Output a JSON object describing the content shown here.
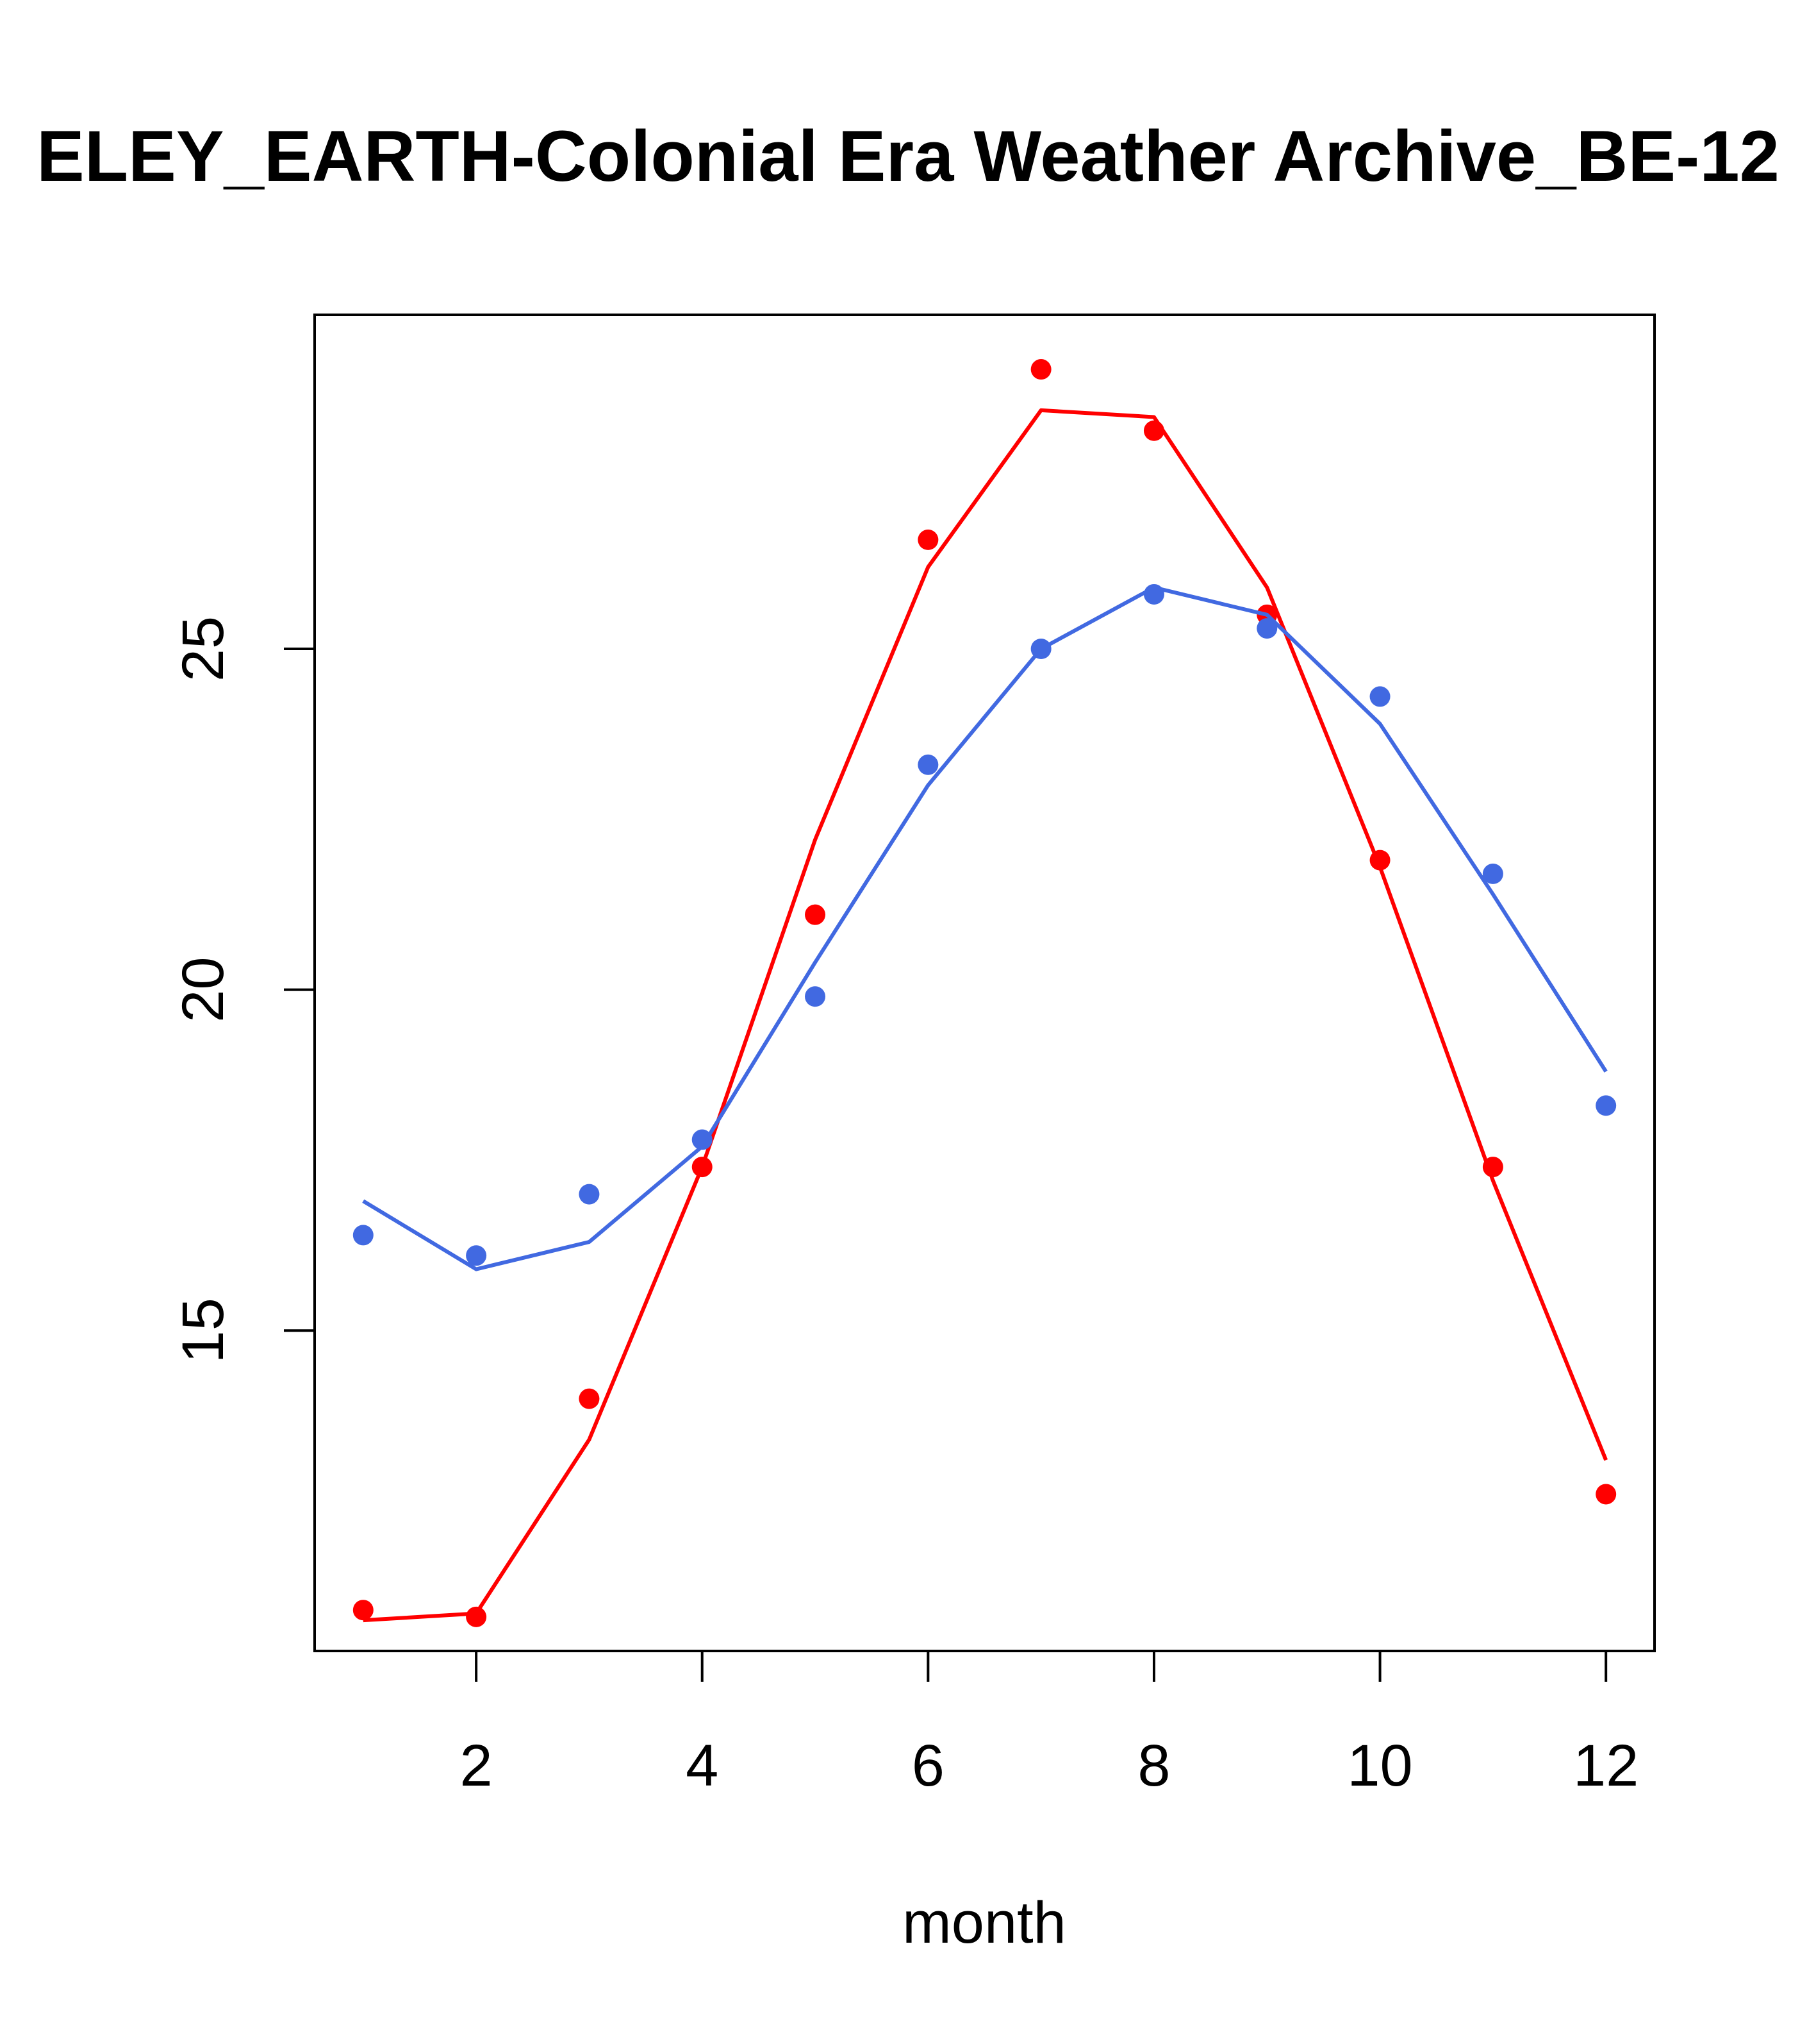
{
  "chart_data": {
    "type": "line",
    "title": "ELEY_EARTH-Colonial Era Weather Archive_BE-12",
    "xlabel": "month",
    "ylabel": "",
    "xlim": [
      0.57,
      12.43
    ],
    "ylim": [
      10.3,
      29.9
    ],
    "x_ticks": [
      2,
      4,
      6,
      8,
      10,
      12
    ],
    "y_ticks": [
      15,
      20,
      25
    ],
    "grid": false,
    "x": [
      1,
      2,
      3,
      4,
      5,
      6,
      7,
      8,
      9,
      10,
      11,
      12
    ],
    "series": [
      {
        "color": "#FF0000",
        "points": [
          10.9,
          10.8,
          14.0,
          17.4,
          21.1,
          26.6,
          29.1,
          28.2,
          25.5,
          21.9,
          17.4,
          12.6
        ],
        "line": [
          10.75,
          10.85,
          13.4,
          17.4,
          22.2,
          26.2,
          28.5,
          28.4,
          25.9,
          21.8,
          17.2,
          13.1
        ]
      },
      {
        "color": "#4169E1",
        "points": [
          16.4,
          16.1,
          17.0,
          17.8,
          19.9,
          23.3,
          25.0,
          25.8,
          25.3,
          24.3,
          21.7,
          18.3
        ],
        "line": [
          16.9,
          15.9,
          16.3,
          17.7,
          20.4,
          23.0,
          25.0,
          25.9,
          25.5,
          23.9,
          21.4,
          18.8
        ]
      }
    ]
  }
}
